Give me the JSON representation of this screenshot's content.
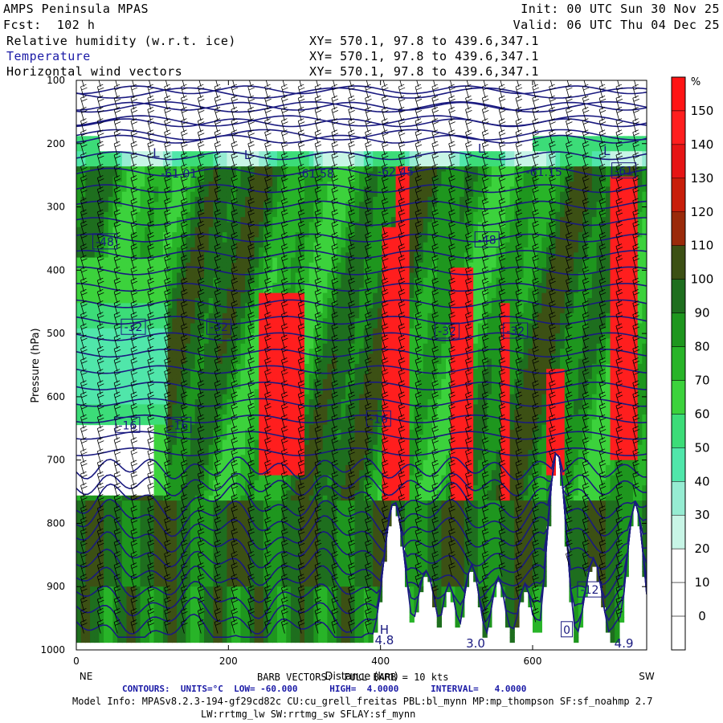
{
  "header": {
    "model": "AMPS Peninsula MPAS",
    "forecast": "Fcst:  102 h",
    "init": "Init: 00 UTC Sun 30 Nov 25",
    "valid": "Valid: 06 UTC Thu 04 Dec 25",
    "field1": "Relative humidity (w.r.t. ice)",
    "field2": "Temperature",
    "field3": "Horizontal wind vectors",
    "xy1": "XY= 570.1, 97.8 to 439.6,347.1",
    "xy2": "XY= 570.1, 97.8 to 439.6,347.1",
    "xy3": "XY= 570.1, 97.8 to 439.6,347.1"
  },
  "footer": {
    "barb": "BARB VECTORS:  FULL BARB = 10 kts",
    "contours": "CONTOURS:  UNITS=°C  LOW= -60.000      HIGH=  4.0000      INTERVAL=   4.0000",
    "model_info": "Model Info: MPASv8.2.3-194-gf29cd82c CU:cu_grell_freitas PBL:bl_mynn MP:mp_thompson SF:sf_noahmp 2.7",
    "model_info2": "LW:rrtmg_lw SW:rrtmg_sw SFLAY:sf_mynn"
  },
  "colors": {
    "temperature_contour": "#1a1a80",
    "barb": "#000000"
  },
  "chart_data": {
    "type": "heatmap",
    "ylabel": "Pressure (hPa)",
    "xlabel": "Distance (km)",
    "x_ticks": [
      "0",
      "200",
      "400",
      "600"
    ],
    "x_range": [
      0,
      750
    ],
    "y_ticks": [
      "100",
      "200",
      "300",
      "400",
      "500",
      "600",
      "700",
      "800",
      "900",
      "1000"
    ],
    "y_range": [
      100,
      1000
    ],
    "y_inverted": true,
    "left_end_label": "NE",
    "right_end_label": "SW",
    "colorbar": {
      "unit": "%",
      "levels": [
        0,
        10,
        20,
        30,
        40,
        50,
        60,
        70,
        80,
        90,
        100,
        110,
        120,
        130,
        140,
        150
      ],
      "tick_labels": [
        "0",
        "10",
        "20",
        "30",
        "40",
        "50",
        "60",
        "70",
        "80",
        "90",
        "100",
        "110",
        "120",
        "130",
        "140",
        "150"
      ],
      "colors": [
        "#ffffff",
        "#ffffff",
        "#ffffff",
        "#c8f5e6",
        "#96ecd2",
        "#50e6aa",
        "#3cdc78",
        "#3cd23c",
        "#28b428",
        "#1e961e",
        "#1e6e1e",
        "#3c5014",
        "#9a2a0a",
        "#c81e0a",
        "#e61414",
        "#ff1e1e",
        "#ff1414"
      ]
    },
    "temperature_contours": {
      "low": -60,
      "high": 4,
      "interval": 4,
      "labels": [
        {
          "text": "-61.01",
          "x": 18,
          "p": 247
        },
        {
          "text": "-61.58",
          "x": 42,
          "p": 247
        },
        {
          "text": "-62.45",
          "x": 56,
          "p": 244
        },
        {
          "text": "-61.15",
          "x": 82,
          "p": 245
        },
        {
          "text": "-61",
          "x": 96,
          "p": 243
        },
        {
          "text": "-48",
          "x": 5,
          "p": 355
        },
        {
          "text": "-48",
          "x": 72,
          "p": 352
        },
        {
          "text": "-32",
          "x": 10,
          "p": 490
        },
        {
          "text": "-32",
          "x": 25,
          "p": 490
        },
        {
          "text": "-32",
          "x": 65,
          "p": 496
        },
        {
          "text": "-32",
          "x": 77,
          "p": 496
        },
        {
          "text": "-16",
          "x": 9,
          "p": 645
        },
        {
          "text": "-16",
          "x": 18,
          "p": 645
        },
        {
          "text": "-16",
          "x": 53,
          "p": 635
        },
        {
          "text": "-12",
          "x": 90,
          "p": 905
        },
        {
          "text": "0",
          "x": 86,
          "p": 968
        }
      ],
      "extrema": [
        {
          "text": "L",
          "x": 14,
          "p": 215
        },
        {
          "text": "L",
          "x": 30,
          "p": 218
        },
        {
          "text": "L",
          "x": 71,
          "p": 208
        },
        {
          "text": "L",
          "x": 93,
          "p": 212
        },
        {
          "text": "H",
          "x": 54,
          "p": 968
        },
        {
          "text": "4.8",
          "x": 54,
          "p": 985
        },
        {
          "text": "3.0",
          "x": 70,
          "p": 990
        },
        {
          "text": "4.9",
          "x": 96,
          "p": 990
        }
      ]
    }
  }
}
